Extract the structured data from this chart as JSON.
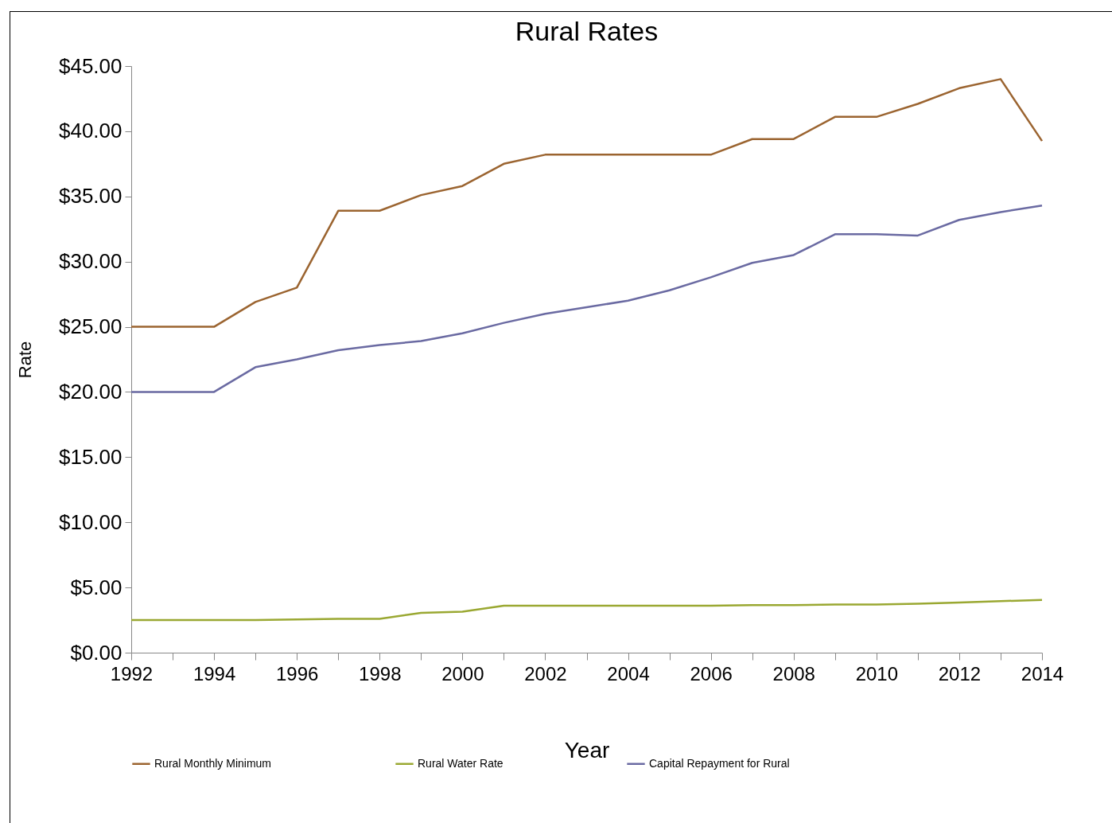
{
  "chart_data": {
    "type": "line",
    "title": "Rural Rates",
    "xlabel": "Year",
    "ylabel": "Rate",
    "x": [
      1992,
      1993,
      1994,
      1995,
      1996,
      1997,
      1998,
      1999,
      2000,
      2001,
      2002,
      2003,
      2004,
      2005,
      2006,
      2007,
      2008,
      2009,
      2010,
      2011,
      2012,
      2013,
      2014
    ],
    "series": [
      {
        "name": "Rural Monthly Minimum",
        "color": "#9b6430",
        "values": [
          25,
          25,
          25,
          26.9,
          28,
          33.9,
          33.9,
          35.1,
          35.8,
          37.5,
          38.2,
          38.2,
          38.2,
          38.2,
          38.2,
          39.4,
          39.4,
          41.1,
          41.1,
          42.1,
          43.3,
          44,
          39.25
        ]
      },
      {
        "name": "Rural Water Rate",
        "color": "#9aa832",
        "values": [
          2.5,
          2.5,
          2.5,
          2.5,
          2.55,
          2.6,
          2.6,
          3.05,
          3.15,
          3.6,
          3.6,
          3.6,
          3.6,
          3.6,
          3.6,
          3.65,
          3.65,
          3.7,
          3.7,
          3.75,
          3.85,
          3.95,
          4.05
        ]
      },
      {
        "name": "Capital Repayment for Rural",
        "color": "#6a6aa2",
        "values": [
          20,
          20,
          20,
          21.9,
          22.5,
          23.2,
          23.6,
          23.9,
          24.5,
          25.3,
          26,
          26.5,
          27,
          27.8,
          28.8,
          29.9,
          30.5,
          32.1,
          32.1,
          32,
          33.2,
          33.8,
          34.3
        ]
      }
    ],
    "xlim": [
      1992,
      2014
    ],
    "xticks": [
      1992,
      {
        "value": 1993,
        "label": null
      },
      1994,
      {
        "value": 1995,
        "label": null
      },
      1996,
      {
        "value": 1997,
        "label": null
      },
      1998,
      {
        "value": 1999,
        "label": null
      },
      2000,
      {
        "value": 2001,
        "label": null
      },
      2002,
      {
        "value": 2003,
        "label": null
      },
      2004,
      {
        "value": 2005,
        "label": null
      },
      2006,
      {
        "value": 2007,
        "label": null
      },
      2008,
      {
        "value": 2009,
        "label": null
      },
      2010,
      {
        "value": 2011,
        "label": null
      },
      2012,
      {
        "value": 2013,
        "label": null
      },
      2014
    ],
    "ylim": [
      0,
      45
    ],
    "yticks": [
      {
        "value": 0,
        "label": "$0.00"
      },
      {
        "value": 5,
        "label": "$5.00"
      },
      {
        "value": 10,
        "label": "$10.00"
      },
      {
        "value": 15,
        "label": "$15.00"
      },
      {
        "value": 20,
        "label": "$20.00"
      },
      {
        "value": 25,
        "label": "$25.00"
      },
      {
        "value": 30,
        "label": "$30.00"
      },
      {
        "value": 35,
        "label": "$35.00"
      },
      {
        "value": 40,
        "label": "$40.00"
      },
      {
        "value": 45,
        "label": "$45.00"
      }
    ],
    "grid": false,
    "legend": "bottom",
    "marker": "none",
    "line_style": "solid"
  }
}
